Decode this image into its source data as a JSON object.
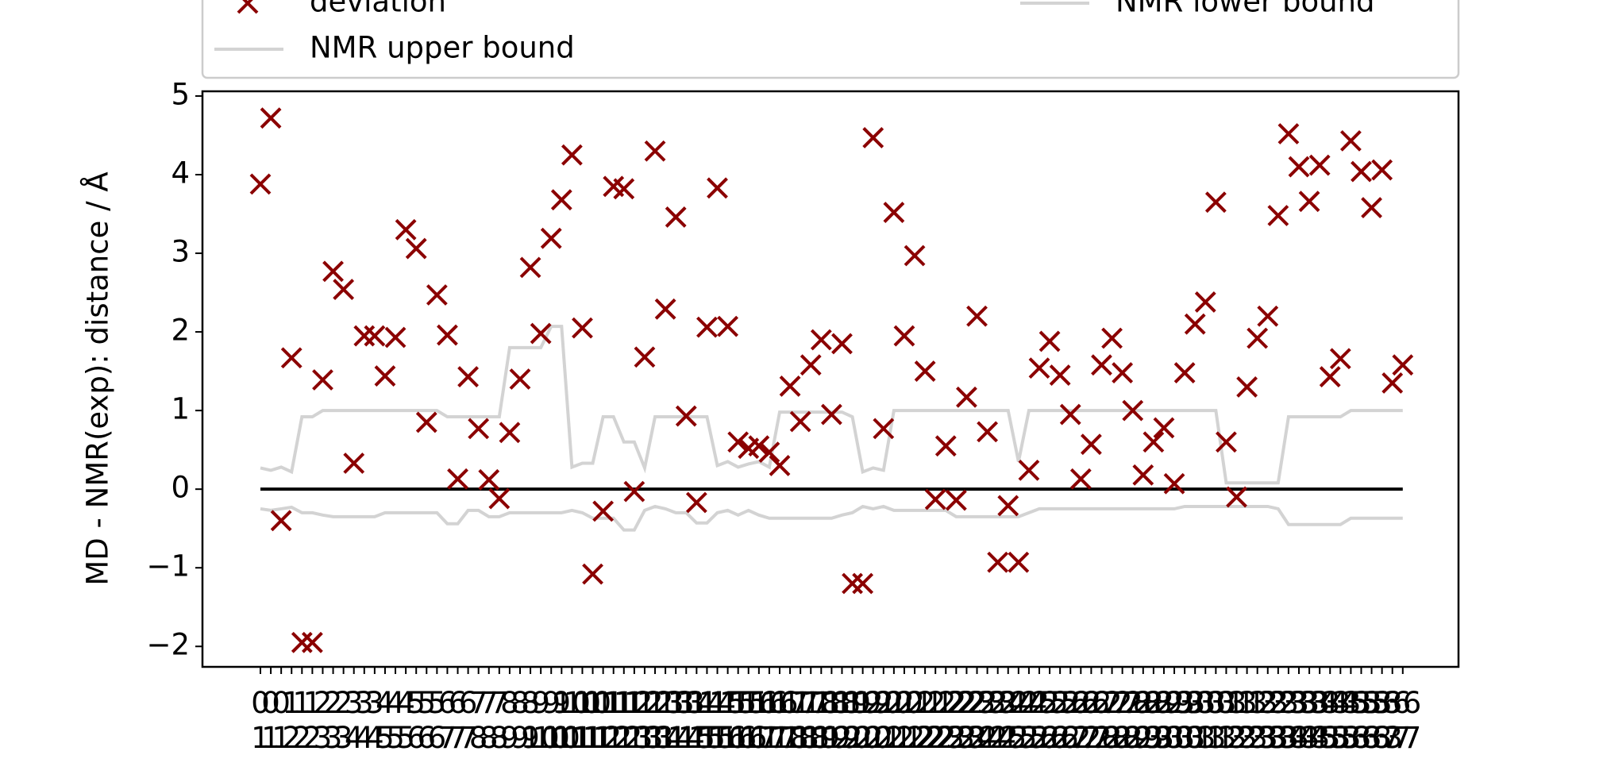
{
  "chart_data": {
    "type": "scatter",
    "y_label": "MD - NMR(exp): distance / Å",
    "categories": [
      "0\n1",
      "0\n1",
      "0\n1",
      "1\n2",
      "1\n2",
      "1\n2",
      "2\n3",
      "2\n3",
      "2\n3",
      "3\n4",
      "3\n4",
      "3\n4",
      "4\n5",
      "4\n5",
      "4\n5",
      "5\n6",
      "5\n6",
      "5\n6",
      "6\n7",
      "6\n7",
      "6\n7",
      "7\n8",
      "7\n8",
      "7\n8",
      "8\n9",
      "8\n9",
      "8\n9",
      "9\n10",
      "9\n10",
      "9\n10",
      "10\n11",
      "10\n11",
      "10\n11",
      "11\n12",
      "11\n12",
      "11\n12",
      "12\n13",
      "12\n13",
      "12\n13",
      "13\n14",
      "13\n14",
      "13\n14",
      "14\n15",
      "14\n15",
      "14\n15",
      "15\n16",
      "15\n16",
      "15\n16",
      "16\n17",
      "16\n17",
      "16\n17",
      "17\n18",
      "17\n18",
      "17\n18",
      "18\n19",
      "18\n19",
      "18\n19",
      "19\n20",
      "19\n20",
      "19\n20",
      "20\n21",
      "20\n21",
      "20\n21",
      "21\n22",
      "21\n22",
      "21\n22",
      "22\n23",
      "22\n23",
      "22\n23",
      "23\n24",
      "23\n24",
      "23\n24",
      "24\n25",
      "24\n25",
      "24\n25",
      "25\n26",
      "25\n26",
      "25\n26",
      "26\n27",
      "26\n27",
      "26\n27",
      "27\n28",
      "27\n28",
      "27\n28",
      "28\n29",
      "28\n29",
      "28\n29",
      "29\n30",
      "29\n30",
      "29\n30",
      "30\n31",
      "30\n31",
      "30\n31",
      "31\n32",
      "31\n32",
      "31\n32",
      "32\n33",
      "32\n33",
      "32\n33",
      "33\n34",
      "33\n34",
      "33\n34",
      "34\n35",
      "34\n35",
      "34\n35",
      "35\n36",
      "35\n36",
      "35\n36",
      "36\n37",
      "36\n37",
      "36\n37"
    ],
    "series": [
      {
        "name": "deviation",
        "type": "scatter",
        "color": "#8b0000",
        "values": [
          3.88,
          4.72,
          -0.4,
          1.67,
          -1.95,
          -1.95,
          1.39,
          2.77,
          2.54,
          0.33,
          1.95,
          1.95,
          1.44,
          1.93,
          3.3,
          3.06,
          0.85,
          2.47,
          1.96,
          0.13,
          1.43,
          0.77,
          0.12,
          -0.12,
          0.72,
          1.4,
          2.82,
          1.98,
          3.19,
          3.68,
          4.25,
          2.05,
          -1.08,
          -0.28,
          3.85,
          3.82,
          -0.03,
          1.68,
          4.3,
          2.29,
          3.46,
          0.93,
          -0.17,
          2.06,
          3.83,
          2.07,
          0.6,
          0.52,
          0.55,
          0.47,
          0.3,
          1.31,
          0.86,
          1.58,
          1.9,
          0.95,
          1.85,
          -1.2,
          -1.2,
          4.47,
          0.77,
          3.52,
          1.95,
          2.97,
          1.5,
          -0.13,
          0.55,
          -0.14,
          1.17,
          2.2,
          0.73,
          -0.93,
          -0.21,
          -0.93,
          0.24,
          1.54,
          1.88,
          1.45,
          0.95,
          0.13,
          0.57,
          1.58,
          1.92,
          1.48,
          1.0,
          0.18,
          0.6,
          0.78,
          0.07,
          1.48,
          2.1,
          2.38,
          3.65,
          0.6,
          -0.1,
          1.3,
          1.92,
          2.2,
          3.48,
          4.52,
          4.1,
          3.66,
          4.12,
          1.43,
          1.66,
          4.43,
          4.04,
          3.58,
          4.06,
          1.35,
          1.58
        ]
      },
      {
        "name": "NMR upper bound",
        "type": "line",
        "color": "#d3d3d3",
        "values": [
          0.27,
          0.24,
          0.28,
          0.22,
          0.92,
          0.92,
          1.0,
          1.0,
          1.0,
          1.0,
          1.0,
          1.0,
          1.0,
          1.0,
          1.0,
          1.0,
          1.0,
          1.0,
          0.92,
          0.92,
          0.92,
          0.92,
          0.92,
          0.92,
          1.8,
          1.8,
          1.8,
          1.8,
          2.07,
          2.07,
          0.28,
          0.33,
          0.33,
          0.92,
          0.92,
          0.6,
          0.6,
          0.27,
          0.92,
          0.92,
          0.92,
          0.92,
          0.92,
          0.92,
          0.3,
          0.35,
          0.28,
          0.32,
          0.35,
          0.28,
          0.98,
          0.98,
          0.98,
          0.98,
          0.98,
          0.98,
          0.98,
          0.92,
          0.22,
          0.27,
          0.24,
          1.0,
          1.0,
          1.0,
          1.0,
          1.0,
          1.0,
          1.0,
          1.0,
          1.0,
          1.0,
          1.0,
          1.0,
          0.35,
          1.0,
          1.0,
          1.0,
          1.0,
          1.0,
          1.0,
          1.0,
          1.0,
          1.0,
          1.0,
          1.0,
          1.0,
          1.0,
          1.0,
          1.0,
          1.0,
          1.0,
          1.0,
          1.0,
          0.08,
          0.08,
          0.08,
          0.08,
          0.08,
          0.08,
          0.92,
          0.92,
          0.92,
          0.92,
          0.92,
          0.92,
          1.0,
          1.0,
          1.0,
          1.0,
          1.0,
          1.0
        ]
      },
      {
        "name": "NMR lower bound",
        "type": "line",
        "color": "#d3d3d3",
        "values": [
          -0.25,
          -0.27,
          -0.25,
          -0.23,
          -0.3,
          -0.3,
          -0.33,
          -0.35,
          -0.35,
          -0.35,
          -0.35,
          -0.35,
          -0.3,
          -0.3,
          -0.3,
          -0.3,
          -0.3,
          -0.3,
          -0.44,
          -0.44,
          -0.27,
          -0.27,
          -0.35,
          -0.35,
          -0.3,
          -0.3,
          -0.3,
          -0.3,
          -0.3,
          -0.3,
          -0.27,
          -0.3,
          -0.37,
          -0.37,
          -0.37,
          -0.52,
          -0.52,
          -0.27,
          -0.22,
          -0.25,
          -0.3,
          -0.3,
          -0.43,
          -0.43,
          -0.3,
          -0.27,
          -0.33,
          -0.27,
          -0.33,
          -0.37,
          -0.37,
          -0.37,
          -0.37,
          -0.37,
          -0.37,
          -0.37,
          -0.33,
          -0.3,
          -0.22,
          -0.25,
          -0.22,
          -0.27,
          -0.27,
          -0.27,
          -0.27,
          -0.27,
          -0.27,
          -0.35,
          -0.35,
          -0.35,
          -0.35,
          -0.35,
          -0.35,
          -0.35,
          -0.3,
          -0.25,
          -0.25,
          -0.25,
          -0.25,
          -0.25,
          -0.25,
          -0.25,
          -0.25,
          -0.25,
          -0.25,
          -0.25,
          -0.25,
          -0.25,
          -0.25,
          -0.22,
          -0.22,
          -0.22,
          -0.22,
          -0.22,
          -0.22,
          -0.22,
          -0.22,
          -0.22,
          -0.25,
          -0.45,
          -0.45,
          -0.45,
          -0.45,
          -0.45,
          -0.45,
          -0.37,
          -0.37,
          -0.37,
          -0.37,
          -0.37,
          -0.37
        ]
      }
    ],
    "reference_line": {
      "value": 0,
      "color": "#000000"
    },
    "ylim": [
      -2.26,
      5.06
    ],
    "yticks": [
      {
        "value": -2,
        "label": "−2"
      },
      {
        "value": -1,
        "label": "−1"
      },
      0,
      1,
      2,
      3,
      4,
      5
    ],
    "legend": "top"
  }
}
